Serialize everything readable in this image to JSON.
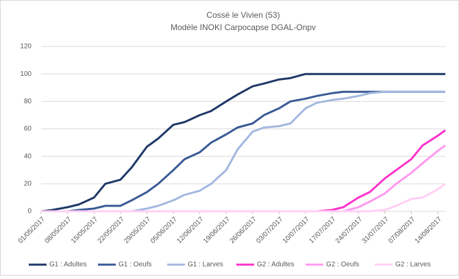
{
  "chart_data": {
    "type": "line",
    "title": "Cossé le Vivien (53)",
    "subtitle": "Modèle INOKI Carpocapse DGAL-Onpv",
    "x": [
      "01/05/2017",
      "04/05/2017",
      "08/05/2017",
      "11/05/2017",
      "15/05/2017",
      "18/05/2017",
      "22/05/2017",
      "25/05/2017",
      "29/05/2017",
      "01/06/2017",
      "05/06/2017",
      "08/06/2017",
      "12/06/2017",
      "15/06/2017",
      "19/06/2017",
      "22/06/2017",
      "26/06/2017",
      "29/06/2017",
      "03/07/2017",
      "06/07/2017",
      "10/07/2017",
      "13/07/2017",
      "17/07/2017",
      "20/07/2017",
      "24/07/2017",
      "27/07/2017",
      "31/07/2017",
      "03/08/2017",
      "07/08/2017",
      "10/08/2017",
      "14/08/2017",
      "16/08/2017"
    ],
    "series": [
      {
        "name": "G1 : Adultes",
        "color": "#1f3868",
        "values": [
          0,
          1,
          3,
          5,
          10,
          20,
          23,
          32,
          47,
          53,
          63,
          65,
          70,
          73,
          80,
          85,
          91,
          93,
          96,
          97,
          100,
          100,
          100,
          100,
          100,
          100,
          100,
          100,
          100,
          100,
          100,
          100
        ]
      },
      {
        "name": "G1 : Oeufs",
        "color": "#3a5a96",
        "values": [
          0,
          0,
          0,
          1,
          2,
          4,
          4,
          8,
          14,
          20,
          30,
          38,
          43,
          50,
          56,
          61,
          64,
          70,
          75,
          80,
          82,
          84,
          86,
          87,
          87,
          87,
          87,
          87,
          87,
          87,
          87,
          87
        ]
      },
      {
        "name": "G1 : Larves",
        "color": "#a3b8e0",
        "values": [
          0,
          0,
          0,
          0,
          0,
          0,
          0,
          0,
          2,
          4,
          8,
          12,
          15,
          20,
          30,
          45,
          58,
          61,
          62,
          64,
          75,
          79,
          81,
          82,
          84,
          86,
          87,
          87,
          87,
          87,
          87,
          87
        ]
      },
      {
        "name": "G2 : Adultes",
        "color": "#ff33cc",
        "values": [
          0,
          0,
          0,
          0,
          0,
          0,
          0,
          0,
          0,
          0,
          0,
          0,
          0,
          0,
          0,
          0,
          0,
          0,
          0,
          0,
          0,
          0,
          1,
          3,
          10,
          14,
          24,
          30,
          38,
          48,
          55,
          59
        ]
      },
      {
        "name": "G2 : Oeufs",
        "color": "#ff99ee",
        "values": [
          0,
          0,
          0,
          0,
          0,
          0,
          0,
          0,
          0,
          0,
          0,
          0,
          0,
          0,
          0,
          0,
          0,
          0,
          0,
          0,
          0,
          0,
          0,
          0,
          3,
          7,
          13,
          20,
          28,
          35,
          44,
          48
        ]
      },
      {
        "name": "G2 : Larves",
        "color": "#ffd0f5",
        "values": [
          0,
          0,
          0,
          0,
          0,
          0,
          0,
          0,
          0,
          0,
          0,
          0,
          0,
          0,
          0,
          0,
          0,
          0,
          0,
          0,
          0,
          0,
          0,
          0,
          0,
          0,
          1,
          4,
          9,
          10,
          16,
          20
        ]
      }
    ],
    "xlim": [
      "01/05/2017",
      "16/08/2017"
    ],
    "xticks": [
      "01/05/2017",
      "08/05/2017",
      "15/05/2017",
      "22/05/2017",
      "29/05/2017",
      "05/06/2017",
      "12/06/2017",
      "19/06/2017",
      "26/06/2017",
      "03/07/2017",
      "10/07/2017",
      "17/07/2017",
      "24/07/2017",
      "31/07/2017",
      "07/08/2017",
      "14/08/2017"
    ],
    "ylim": [
      0,
      120
    ],
    "yticks": [
      0,
      20,
      40,
      60,
      80,
      100,
      120
    ],
    "grid": true,
    "legend": "bottom"
  }
}
